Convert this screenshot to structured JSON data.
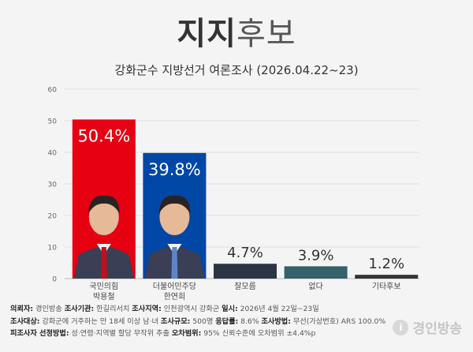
{
  "title_part1": "지지",
  "title_part2": "후보",
  "subtitle": "강화군수 지방선거 여론조사 (2026.04.22~23)",
  "chart_data": {
    "type": "bar",
    "title": "지지후보",
    "subtitle": "강화군수 지방선거 여론조사 (2026.04.22~23)",
    "categories": [
      "국민의힘\n박용철",
      "더불어민주당\n한연희",
      "잘모름",
      "없다",
      "기타후보"
    ],
    "values": [
      50.4,
      39.8,
      4.7,
      3.9,
      1.2
    ],
    "value_labels": [
      "50.4%",
      "39.8%",
      "4.7%",
      "3.9%",
      "1.2%"
    ],
    "colors": [
      "#e60012",
      "#0047a6",
      "#2b3543",
      "#35616a",
      "#333333"
    ],
    "ylim": [
      0,
      60
    ],
    "yticks": [
      0,
      10,
      20,
      30,
      40,
      50,
      60
    ],
    "grid": true,
    "legend": "none"
  },
  "footer": {
    "line1": [
      {
        "label": "의뢰자:",
        "value": " 경인방송 "
      },
      {
        "label": " 조사기관:",
        "value": " 한길리서치 "
      },
      {
        "label": " 조사지역:",
        "value": " 인천광역시 강화군 "
      },
      {
        "label": " 일시:",
        "value": " 2026년 4월 22일~23일"
      }
    ],
    "line2": [
      {
        "label": "조사대상:",
        "value": " 강화군에 거주하는 만 18세 이상 남·녀 "
      },
      {
        "label": " 조사규모:",
        "value": " 500명 "
      },
      {
        "label": " 응답률:",
        "value": " 8.6% "
      },
      {
        "label": " 조사방법:",
        "value": " 무선(가상번호) ARS 100.0%"
      }
    ],
    "line3": [
      {
        "label": "피조사자 선정방법:",
        "value": " 성·연령·지역별 할당 무작위 추출 "
      },
      {
        "label": " 오차범위:",
        "value": " 95% 신뢰수준에 오차범위 ±4.4%p"
      }
    ]
  },
  "logo": {
    "mark": "i",
    "name": "경인방송"
  }
}
